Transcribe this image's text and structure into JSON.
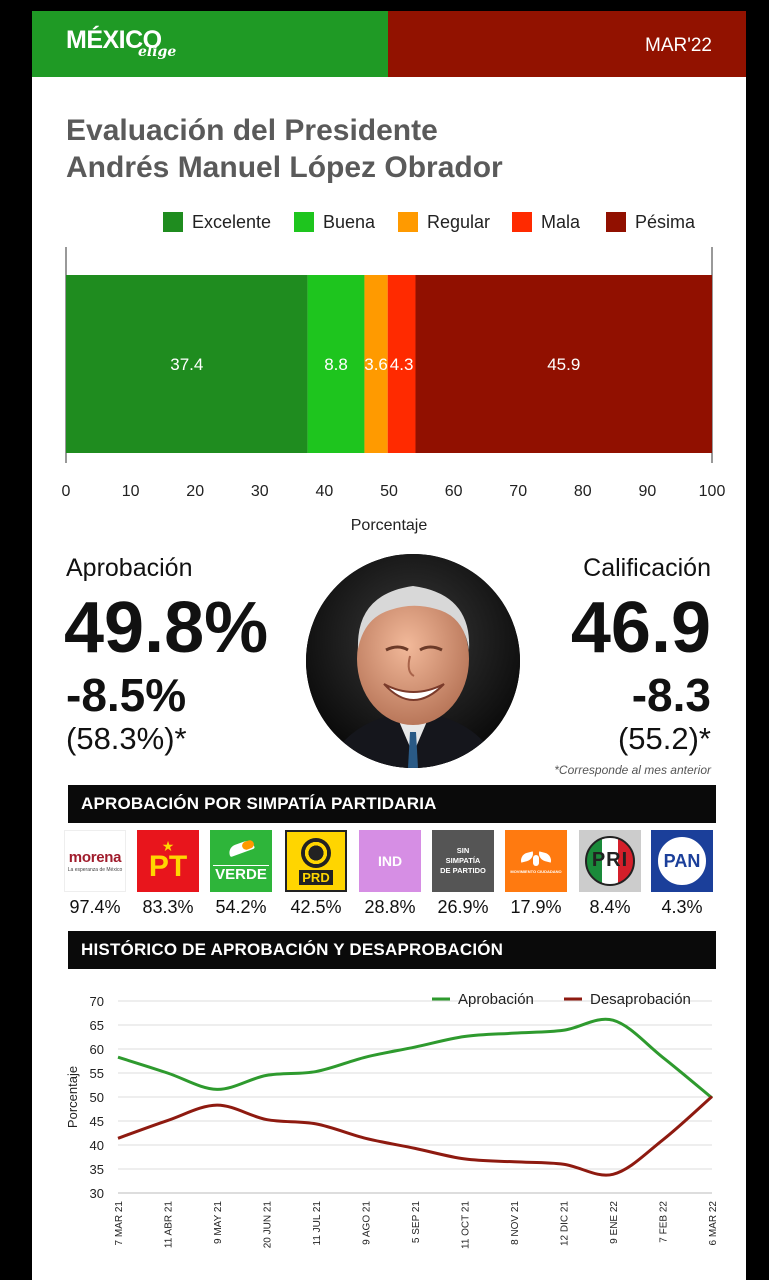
{
  "header": {
    "logo_main": "MÉXICO",
    "logo_sub": "elige",
    "date": "MAR'22",
    "green": "#1f9a25",
    "red": "#921200"
  },
  "title_line1": "Evaluación del Presidente",
  "title_line2": "Andrés Manuel López Obrador",
  "chart_data": [
    {
      "type": "bar",
      "orientation": "horizontal-stacked",
      "series": [
        {
          "name": "Excelente",
          "value": 37.4,
          "color": "#1f8c1f"
        },
        {
          "name": "Buena",
          "value": 8.8,
          "color": "#1ec51e"
        },
        {
          "name": "Regular",
          "value": 3.6,
          "color": "#ff9a00"
        },
        {
          "name": "Mala",
          "value": 4.3,
          "color": "#ff2a00"
        },
        {
          "name": "Pésima",
          "value": 45.9,
          "color": "#911000"
        }
      ],
      "xlim": [
        0,
        100
      ],
      "xticks": [
        "0",
        "10",
        "20",
        "30",
        "40",
        "50",
        "60",
        "70",
        "80",
        "90",
        "100"
      ],
      "xlabel": "Porcentaje",
      "legend": "top"
    },
    {
      "type": "line",
      "x": [
        "7 MAR 21",
        "11 ABR 21",
        "9 MAY 21",
        "20 JUN 21",
        "11 JUL 21",
        "9 AGO 21",
        "5 SEP 21",
        "11 OCT 21",
        "8 NOV 21",
        "12 DIC 21",
        "9 ENE 22",
        "7 FEB 22",
        "6 MAR 22"
      ],
      "series": [
        {
          "name": "Aprobación",
          "color": "#2e9a2e",
          "values": [
            58.3,
            55.0,
            51.6,
            54.5,
            55.3,
            58.3,
            60.4,
            62.6,
            63.3,
            63.9,
            66.0,
            58.3,
            49.8
          ]
        },
        {
          "name": "Desaprobación",
          "color": "#8e1a10",
          "values": [
            41.4,
            45.1,
            48.3,
            45.3,
            44.4,
            41.4,
            39.3,
            37.1,
            36.5,
            36.0,
            33.9,
            41.0,
            50.1
          ]
        }
      ],
      "ylim": [
        30,
        70
      ],
      "yticks": [
        "30",
        "35",
        "40",
        "45",
        "50",
        "55",
        "60",
        "65",
        "70"
      ],
      "ylabel": "Porcentaje",
      "legend": "top-right",
      "grid": true
    }
  ],
  "approval": {
    "label": "Aprobación",
    "value": "49.8%",
    "change": "-8.5%",
    "previous": "(58.3%)*"
  },
  "rating": {
    "label": "Calificación",
    "value": "46.9",
    "change": "-8.3",
    "previous": "(55.2)*"
  },
  "footnote": "*Corresponde al mes anterior",
  "party_section_title": "APROBACIÓN POR SIMPATÍA PARTIDARIA",
  "parties": [
    {
      "logo": "morena",
      "logo_sub": "La esperanza de México",
      "pct": "97.4%"
    },
    {
      "logo": "PT",
      "pct": "83.3%"
    },
    {
      "logo": "VERDE",
      "pct": "54.2%"
    },
    {
      "logo": "PRD",
      "pct": "42.5%"
    },
    {
      "logo": "IND",
      "pct": "28.8%"
    },
    {
      "logo": "SIN SIMPATÍA DE PARTIDO",
      "pct": "26.9%"
    },
    {
      "logo": "MOVIMIENTO CIUDADANO",
      "pct": "17.9%"
    },
    {
      "logo": "PRI",
      "pct": "8.4%"
    },
    {
      "logo": "PAN",
      "pct": "4.3%"
    }
  ],
  "history_section_title": "HISTÓRICO DE APROBACIÓN Y DESAPROBACIÓN"
}
